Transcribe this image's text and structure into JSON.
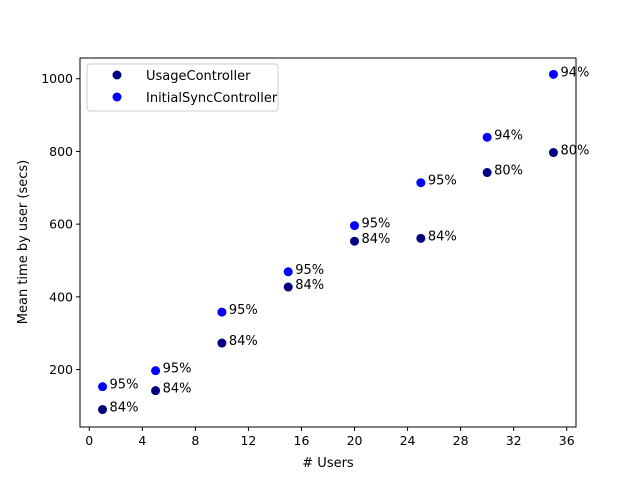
{
  "chart_data": {
    "type": "scatter",
    "xlabel": "# Users",
    "ylabel": "Mean time by user (secs)",
    "xlim": [
      -0.7,
      36.7
    ],
    "ylim": [
      42,
      1057
    ],
    "xticks": [
      0,
      4,
      8,
      12,
      16,
      20,
      24,
      28,
      32,
      36
    ],
    "xtick_labels": [
      "0",
      "4",
      "8",
      "12",
      "16",
      "20",
      "24",
      "28",
      "32",
      "36"
    ],
    "yticks": [
      200,
      400,
      600,
      800,
      1000
    ],
    "ytick_labels": [
      "200",
      "400",
      "600",
      "800",
      "1000"
    ],
    "grid": false,
    "legend": "upper-left",
    "series": [
      {
        "name": "UsageController",
        "color": "#000080",
        "x": [
          1,
          5,
          10,
          15,
          20,
          25,
          30,
          35
        ],
        "y": [
          90,
          142,
          273,
          427,
          553,
          561,
          742,
          797
        ],
        "labels": [
          "84%",
          "84%",
          "84%",
          "84%",
          "84%",
          "84%",
          "80%",
          "80%"
        ]
      },
      {
        "name": "InitialSyncController",
        "color": "#0000ff",
        "x": [
          1,
          5,
          10,
          15,
          20,
          25,
          30,
          35
        ],
        "y": [
          153,
          197,
          358,
          469,
          596,
          714,
          839,
          1012
        ],
        "labels": [
          "95%",
          "95%",
          "95%",
          "95%",
          "95%",
          "95%",
          "94%",
          "94%"
        ]
      }
    ]
  }
}
